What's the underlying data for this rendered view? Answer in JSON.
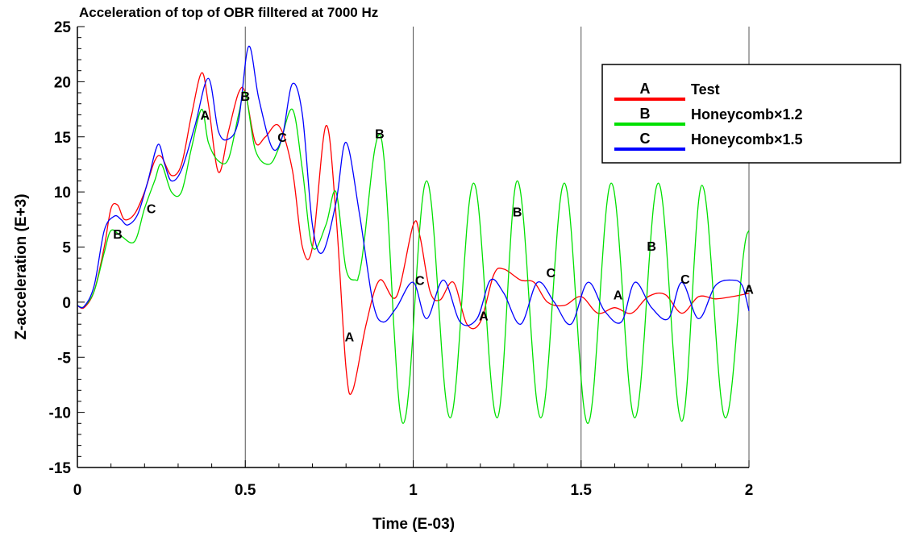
{
  "chart_data": {
    "type": "line",
    "title": "Acceleration of top of OBR filltered at 7000 Hz",
    "xlabel": "Time (E-03)",
    "ylabel": "Z-acceleration (E+3)",
    "xlim": [
      0,
      2
    ],
    "ylim": [
      -15,
      25
    ],
    "x_ticks": [
      0,
      0.5,
      1,
      1.5,
      2
    ],
    "x_tick_labels": [
      "0",
      "0.5",
      "1",
      "1.5",
      "2"
    ],
    "y_ticks": [
      -15,
      -10,
      -5,
      0,
      5,
      10,
      15,
      20,
      25
    ],
    "y_tick_labels": [
      "-15",
      "-10",
      "-5",
      "0",
      "5",
      "10",
      "15",
      "20",
      "25"
    ],
    "grid": "major-x-only",
    "legend_position": "top-right",
    "series": [
      {
        "letter": "A",
        "name": "Test",
        "color": "#ff0000",
        "x": [
          0,
          0.02,
          0.05,
          0.08,
          0.1,
          0.12,
          0.14,
          0.17,
          0.2,
          0.23,
          0.25,
          0.28,
          0.31,
          0.34,
          0.37,
          0.39,
          0.42,
          0.45,
          0.48,
          0.5,
          0.53,
          0.56,
          0.6,
          0.64,
          0.67,
          0.7,
          0.74,
          0.77,
          0.8,
          0.82,
          0.86,
          0.9,
          0.95,
          1.0,
          1.02,
          1.05,
          1.08,
          1.12,
          1.16,
          1.2,
          1.24,
          1.27,
          1.32,
          1.36,
          1.4,
          1.45,
          1.5,
          1.55,
          1.6,
          1.65,
          1.7,
          1.75,
          1.8,
          1.85,
          1.9,
          1.95,
          2.0
        ],
        "y": [
          -0.3,
          -0.5,
          1.0,
          5.0,
          8.5,
          8.8,
          7.5,
          8.0,
          10.0,
          12.8,
          13.2,
          11.5,
          12.5,
          17.0,
          20.8,
          18.0,
          11.8,
          15.5,
          19.0,
          19.0,
          14.5,
          15.0,
          16.0,
          12.0,
          5.0,
          5.0,
          16.0,
          8.0,
          -6.0,
          -8.0,
          -2.0,
          2.0,
          0.5,
          7.0,
          6.0,
          1.0,
          0.2,
          1.8,
          -2.0,
          -1.8,
          2.5,
          3.0,
          2.0,
          1.8,
          0.0,
          -0.3,
          0.5,
          -1.0,
          -0.5,
          -1.0,
          0.5,
          0.7,
          -1.0,
          0.5,
          0.3,
          0.5,
          0.8
        ]
      },
      {
        "letter": "B",
        "name": "Honeycomb×1.2",
        "color": "#00e000",
        "amplitude_x": [
          0.9,
          0.97,
          1.04,
          1.11,
          1.18,
          1.25,
          1.31,
          1.38,
          1.45,
          1.52,
          1.59,
          1.66,
          1.73,
          1.8,
          1.86,
          1.93
        ],
        "amplitude_y": [
          15.2,
          -11.0,
          11.0,
          -10.5,
          10.8,
          -10.5,
          11.0,
          -10.5,
          10.8,
          -11.0,
          10.8,
          -10.5,
          10.8,
          -10.8,
          10.6,
          -10.5
        ],
        "x": [
          0,
          0.02,
          0.05,
          0.08,
          0.1,
          0.13,
          0.17,
          0.2,
          0.23,
          0.25,
          0.28,
          0.31,
          0.34,
          0.37,
          0.39,
          0.42,
          0.45,
          0.48,
          0.5,
          0.53,
          0.57,
          0.6,
          0.64,
          0.67,
          0.7,
          0.74,
          0.77,
          0.8,
          0.83
        ],
        "y": [
          -0.3,
          -0.4,
          1.0,
          4.5,
          6.5,
          6.0,
          5.5,
          8.5,
          11.0,
          12.5,
          10.0,
          10.0,
          14.0,
          17.5,
          14.5,
          12.8,
          13.0,
          17.0,
          19.0,
          13.8,
          12.5,
          14.0,
          17.5,
          12.0,
          5.0,
          7.0,
          10.0,
          3.0,
          2.0
        ],
        "final_x": 2.0,
        "final_y": 6.5
      },
      {
        "letter": "C",
        "name": "Honeycomb×1.5",
        "color": "#0000ff",
        "x": [
          0,
          0.02,
          0.05,
          0.08,
          0.11,
          0.13,
          0.15,
          0.18,
          0.21,
          0.24,
          0.26,
          0.28,
          0.31,
          0.35,
          0.39,
          0.42,
          0.45,
          0.48,
          0.51,
          0.54,
          0.58,
          0.61,
          0.64,
          0.67,
          0.7,
          0.73,
          0.77,
          0.8,
          0.84,
          0.88,
          0.91,
          0.95,
          1.0,
          1.04,
          1.09,
          1.14,
          1.19,
          1.23,
          1.27,
          1.32,
          1.37,
          1.42,
          1.47,
          1.52,
          1.57,
          1.62,
          1.66,
          1.71,
          1.76,
          1.8,
          1.85,
          1.9,
          1.95,
          1.98,
          2.0
        ],
        "y": [
          -0.3,
          -0.4,
          1.5,
          6.5,
          7.8,
          7.5,
          7.0,
          8.0,
          11.0,
          14.3,
          12.5,
          11.0,
          12.0,
          16.0,
          20.3,
          15.5,
          14.8,
          16.5,
          23.2,
          18.5,
          14.0,
          15.0,
          19.8,
          17.0,
          7.0,
          4.5,
          9.0,
          14.5,
          8.0,
          0.0,
          -1.8,
          -0.5,
          1.8,
          -1.5,
          2.0,
          -1.8,
          -1.5,
          2.0,
          0.8,
          -2.0,
          1.8,
          0.0,
          -2.0,
          1.8,
          -0.8,
          -1.8,
          1.8,
          -0.5,
          -1.5,
          1.8,
          -1.5,
          1.5,
          2.0,
          1.5,
          -0.8
        ]
      }
    ],
    "curve_markers": [
      {
        "letter": "A",
        "x": 0.38,
        "y": 17.0
      },
      {
        "letter": "B",
        "x": 0.5,
        "y": 18.7
      },
      {
        "letter": "C",
        "x": 0.61,
        "y": 15.0
      },
      {
        "letter": "B",
        "x": 0.9,
        "y": 15.3
      },
      {
        "letter": "C",
        "x": 0.22,
        "y": 8.5
      },
      {
        "letter": "B",
        "x": 0.12,
        "y": 6.2
      },
      {
        "letter": "A",
        "x": 0.81,
        "y": -3.1
      },
      {
        "letter": "C",
        "x": 1.02,
        "y": 2.0
      },
      {
        "letter": "A",
        "x": 1.21,
        "y": -1.2
      },
      {
        "letter": "B",
        "x": 1.31,
        "y": 8.2
      },
      {
        "letter": "C",
        "x": 1.41,
        "y": 2.7
      },
      {
        "letter": "A",
        "x": 1.61,
        "y": 0.7
      },
      {
        "letter": "B",
        "x": 1.71,
        "y": 5.1
      },
      {
        "letter": "C",
        "x": 1.81,
        "y": 2.1
      },
      {
        "letter": "A",
        "x": 2.0,
        "y": 1.2
      }
    ]
  }
}
